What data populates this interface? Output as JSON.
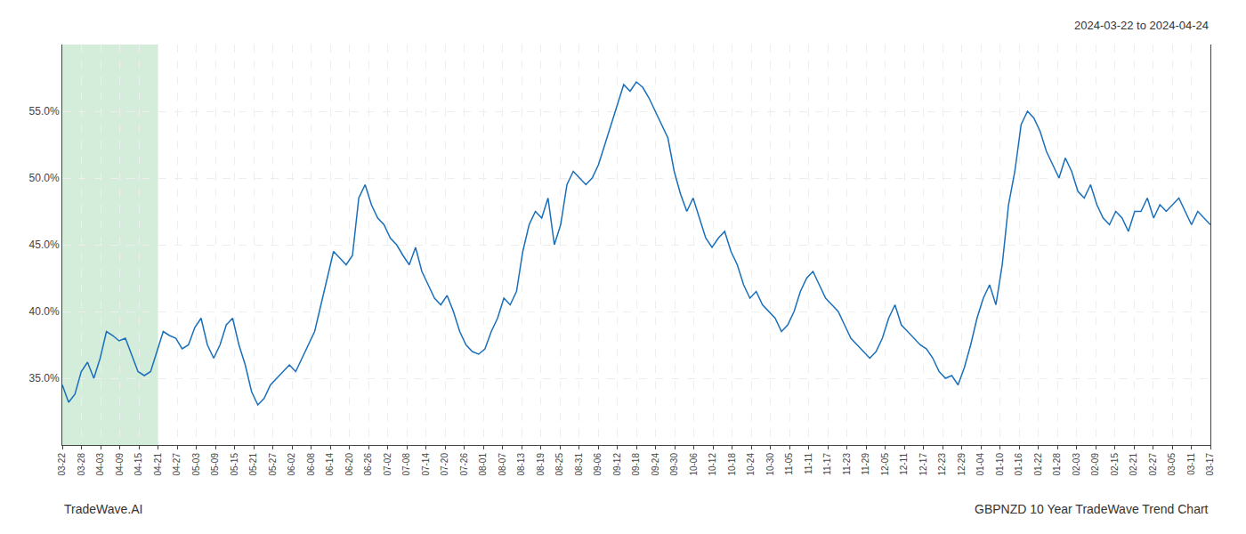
{
  "chart_data": {
    "type": "line",
    "subtitle": "2024-03-22 to 2024-04-24",
    "annotations": [
      "TradeWave.AI",
      "GBPNZD 10 Year TradeWave Trend Chart"
    ],
    "color": "#1a6fbb",
    "grid": true,
    "shaded_region": {
      "range": [
        0,
        15.1666666667
      ],
      "color": "#d4edda"
    },
    "xlim": [
      0,
      182
    ],
    "xticks": [
      {
        "value": 0,
        "label": "03-22"
      },
      {
        "value": 3.0333333333,
        "label": "03-28"
      },
      {
        "value": 6.0666666667,
        "label": "04-03"
      },
      {
        "value": 9.1,
        "label": "04-09"
      },
      {
        "value": 12.1333333333,
        "label": "04-15"
      },
      {
        "value": 15.1666666667,
        "label": "04-21"
      },
      {
        "value": 18.2,
        "label": "04-27"
      },
      {
        "value": 21.2333333333,
        "label": "05-03"
      },
      {
        "value": 24.2666666667,
        "label": "05-09"
      },
      {
        "value": 27.3,
        "label": "05-15"
      },
      {
        "value": 30.3333333333,
        "label": "05-21"
      },
      {
        "value": 33.3666666667,
        "label": "05-27"
      },
      {
        "value": 36.4,
        "label": "06-02"
      },
      {
        "value": 39.4333333333,
        "label": "06-08"
      },
      {
        "value": 42.4666666667,
        "label": "06-14"
      },
      {
        "value": 45.5,
        "label": "06-20"
      },
      {
        "value": 48.5333333333,
        "label": "06-26"
      },
      {
        "value": 51.5666666667,
        "label": "07-02"
      },
      {
        "value": 54.6,
        "label": "07-08"
      },
      {
        "value": 57.6333333333,
        "label": "07-14"
      },
      {
        "value": 60.6666666667,
        "label": "07-20"
      },
      {
        "value": 63.7,
        "label": "07-26"
      },
      {
        "value": 66.7333333333,
        "label": "08-01"
      },
      {
        "value": 69.7666666667,
        "label": "08-07"
      },
      {
        "value": 72.8,
        "label": "08-13"
      },
      {
        "value": 75.8333333333,
        "label": "08-19"
      },
      {
        "value": 78.8666666667,
        "label": "08-25"
      },
      {
        "value": 81.9,
        "label": "08-31"
      },
      {
        "value": 84.9333333333,
        "label": "09-06"
      },
      {
        "value": 87.9666666667,
        "label": "09-12"
      },
      {
        "value": 91,
        "label": "09-18"
      },
      {
        "value": 94.0333333333,
        "label": "09-24"
      },
      {
        "value": 97.0666666667,
        "label": "09-30"
      },
      {
        "value": 100.1,
        "label": "10-06"
      },
      {
        "value": 103.1333333333,
        "label": "10-12"
      },
      {
        "value": 106.1666666667,
        "label": "10-18"
      },
      {
        "value": 109.2,
        "label": "10-24"
      },
      {
        "value": 112.2333333333,
        "label": "10-30"
      },
      {
        "value": 115.2666666667,
        "label": "11-05"
      },
      {
        "value": 118.3,
        "label": "11-11"
      },
      {
        "value": 121.3333333333,
        "label": "11-17"
      },
      {
        "value": 124.3666666667,
        "label": "11-23"
      },
      {
        "value": 127.4,
        "label": "11-29"
      },
      {
        "value": 130.4333333333,
        "label": "12-05"
      },
      {
        "value": 133.4666666667,
        "label": "12-11"
      },
      {
        "value": 136.5,
        "label": "12-17"
      },
      {
        "value": 139.5333333333,
        "label": "12-23"
      },
      {
        "value": 142.5666666667,
        "label": "12-29"
      },
      {
        "value": 145.6,
        "label": "01-04"
      },
      {
        "value": 148.6333333333,
        "label": "01-10"
      },
      {
        "value": 151.6666666667,
        "label": "01-16"
      },
      {
        "value": 154.7,
        "label": "01-22"
      },
      {
        "value": 157.7333333333,
        "label": "01-28"
      },
      {
        "value": 160.7666666667,
        "label": "02-03"
      },
      {
        "value": 163.8,
        "label": "02-09"
      },
      {
        "value": 166.8333333333,
        "label": "02-15"
      },
      {
        "value": 169.8666666667,
        "label": "02-21"
      },
      {
        "value": 172.9,
        "label": "02-27"
      },
      {
        "value": 175.9333333333,
        "label": "03-05"
      },
      {
        "value": 178.9666666667,
        "label": "03-11"
      },
      {
        "value": 182,
        "label": "03-17"
      }
    ],
    "ylim": [
      30.0,
      60.0
    ],
    "yticks": [
      {
        "value": 35.0,
        "label": "35.0%"
      },
      {
        "value": 40.0,
        "label": "40.0%"
      },
      {
        "value": 45.0,
        "label": "45.0%"
      },
      {
        "value": 50.0,
        "label": "50.0%"
      },
      {
        "value": 55.0,
        "label": "55.0%"
      }
    ],
    "values": [
      34.5,
      33.2,
      33.8,
      35.5,
      36.2,
      35.0,
      36.5,
      38.5,
      38.2,
      37.8,
      38.0,
      36.8,
      35.5,
      35.2,
      35.5,
      37.0,
      38.5,
      38.2,
      38.0,
      37.2,
      37.5,
      38.8,
      39.5,
      37.5,
      36.5,
      37.5,
      39.0,
      39.5,
      37.5,
      36.0,
      34.0,
      33.0,
      33.5,
      34.5,
      35.0,
      35.5,
      36.0,
      35.5,
      36.5,
      37.5,
      38.5,
      40.5,
      42.5,
      44.5,
      44.0,
      43.5,
      44.2,
      48.5,
      49.5,
      48.0,
      47.0,
      46.5,
      45.5,
      45.0,
      44.2,
      43.5,
      44.8,
      43.0,
      42.0,
      41.0,
      40.5,
      41.2,
      40.0,
      38.5,
      37.5,
      37.0,
      36.8,
      37.2,
      38.5,
      39.5,
      41.0,
      40.5,
      41.5,
      44.5,
      46.5,
      47.5,
      47.0,
      48.5,
      45.0,
      46.5,
      49.5,
      50.5,
      50.0,
      49.5,
      50.0,
      51.0,
      52.5,
      54.0,
      55.5,
      57.0,
      56.5,
      57.2,
      56.8,
      56.0,
      55.0,
      54.0,
      53.0,
      50.5,
      48.8,
      47.5,
      48.5,
      47.0,
      45.5,
      44.8,
      45.5,
      46.0,
      44.5,
      43.5,
      42.0,
      41.0,
      41.5,
      40.5,
      40.0,
      39.5,
      38.5,
      39.0,
      40.0,
      41.5,
      42.5,
      43.0,
      42.0,
      41.0,
      40.5,
      40.0,
      39.0,
      38.0,
      37.5,
      37.0,
      36.5,
      37.0,
      38.0,
      39.5,
      40.5,
      39.0,
      38.5,
      38.0,
      37.5,
      37.2,
      36.5,
      35.5,
      35.0,
      35.2,
      34.5,
      35.8,
      37.5,
      39.5,
      41.0,
      42.0,
      40.5,
      43.5,
      48.0,
      50.5,
      54.0,
      55.0,
      54.5,
      53.5,
      52.0,
      51.0,
      50.0,
      51.5,
      50.5,
      49.0,
      48.5,
      49.5,
      48.0,
      47.0,
      46.5,
      47.5,
      47.0,
      46.0,
      47.5,
      47.5,
      48.5,
      47.0,
      48.0,
      47.5,
      48.0,
      48.5,
      47.5,
      46.5,
      47.5,
      47.0,
      46.5
    ]
  }
}
